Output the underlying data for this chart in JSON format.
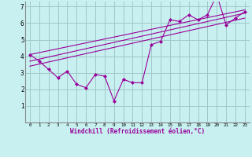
{
  "background_color": "#c8f0f0",
  "grid_color": "#a0c8c8",
  "line_color": "#990099",
  "xlabel": "Windchill (Refroidissement éolien,°C)",
  "xlim": [
    -0.5,
    23.5
  ],
  "ylim": [
    0,
    7.3
  ],
  "yticks": [
    1,
    2,
    3,
    4,
    5,
    6,
    7
  ],
  "xticks": [
    0,
    1,
    2,
    3,
    4,
    5,
    6,
    7,
    8,
    9,
    10,
    11,
    12,
    13,
    14,
    15,
    16,
    17,
    18,
    19,
    20,
    21,
    22,
    23
  ],
  "series1_x": [
    0,
    1,
    2,
    3,
    4,
    5,
    6,
    7,
    8,
    9,
    10,
    11,
    12,
    13,
    14,
    15,
    16,
    17,
    18,
    19,
    20,
    21,
    22,
    23
  ],
  "series1_y": [
    4.1,
    3.7,
    3.2,
    2.7,
    3.1,
    2.3,
    2.1,
    2.9,
    2.8,
    1.3,
    2.6,
    2.4,
    2.4,
    4.7,
    4.9,
    6.2,
    6.1,
    6.5,
    6.2,
    6.5,
    7.7,
    5.9,
    6.3,
    6.7
  ],
  "trend1_x": [
    0,
    23
  ],
  "trend1_y": [
    4.1,
    6.8
  ],
  "trend2_x": [
    0,
    23
  ],
  "trend2_y": [
    3.7,
    6.6
  ],
  "trend3_x": [
    0,
    23
  ],
  "trend3_y": [
    3.4,
    6.3
  ]
}
